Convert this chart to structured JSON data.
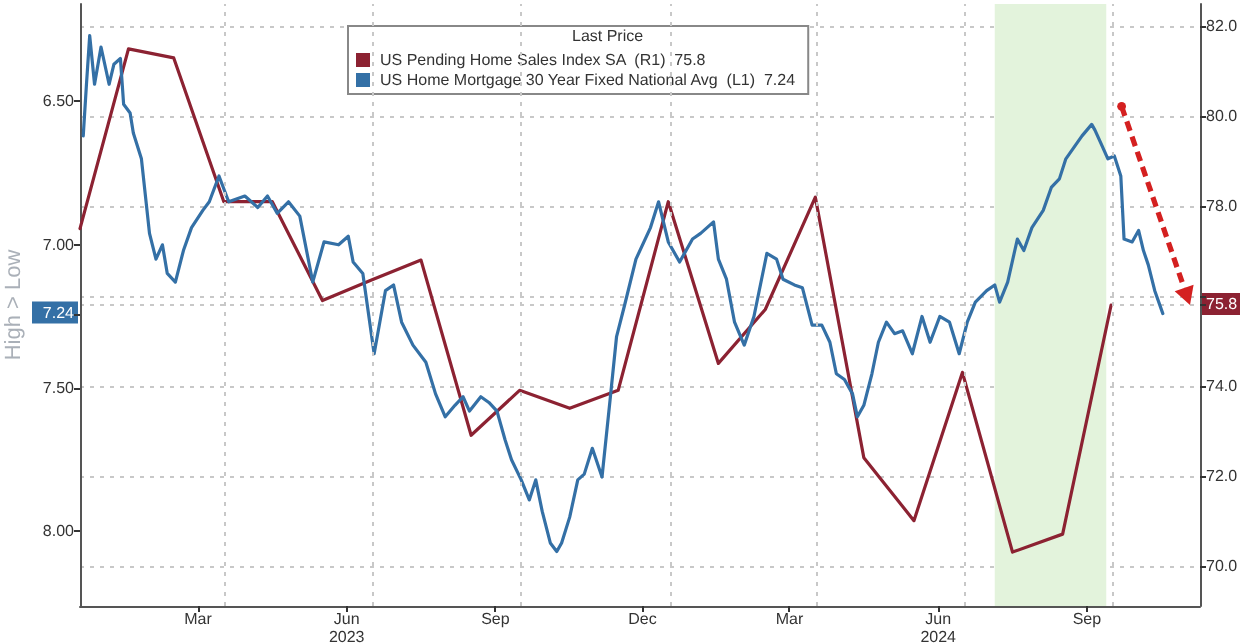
{
  "chart_data": {
    "type": "line",
    "legend_title": "Last Price",
    "ylabel": "High > Low",
    "xlim": [
      "2023-01-01",
      "2024-11-24"
    ],
    "xticks": [
      {
        "value": "2023-03-15",
        "label": "Mar"
      },
      {
        "value": "2023-04-01",
        "label": null
      },
      {
        "value": "2023-06-15",
        "label": "Jun\n2023"
      },
      {
        "value": "2023-07-01",
        "label": null
      },
      {
        "value": "2023-09-15",
        "label": "Sep"
      },
      {
        "value": "2023-10-01",
        "label": null
      },
      {
        "value": "2023-12-15",
        "label": "Dec"
      },
      {
        "value": "2024-01-01",
        "label": null
      },
      {
        "value": "2024-03-15",
        "label": "Mar"
      },
      {
        "value": "2024-04-01",
        "label": null
      },
      {
        "value": "2024-06-15",
        "label": "Jun\n2024"
      },
      {
        "value": "2024-07-01",
        "label": null
      },
      {
        "value": "2024-09-15",
        "label": "Sep"
      },
      {
        "value": "2024-10-01",
        "label": null
      }
    ],
    "ylim": [
      8.26,
      6.16
    ],
    "yticks": [
      {
        "value": 6.5,
        "label": "6.50"
      },
      {
        "value": 7,
        "label": "7.00"
      },
      {
        "value": 7.24,
        "label": "7.24"
      },
      {
        "value": 7.5,
        "label": "7.50"
      },
      {
        "value": 8,
        "label": "8.00"
      }
    ],
    "y2lim": [
      69.1,
      82.5
    ],
    "y2ticks": [
      {
        "value": 70,
        "label": "70.0"
      },
      {
        "value": 72,
        "label": "72.0"
      },
      {
        "value": 74,
        "label": "74.0"
      },
      {
        "value": 75.8,
        "label": "75.8"
      },
      {
        "value": 76,
        "label": null
      },
      {
        "value": 78,
        "label": "78.0"
      },
      {
        "value": 80,
        "label": "80.0"
      },
      {
        "value": 82,
        "label": "82.0"
      }
    ],
    "grid": true,
    "legend": "top",
    "marker": "none",
    "line_style": "solid",
    "bands": [
      {
        "axis": "x",
        "from": "2024-07-20",
        "to": "2024-09-27",
        "color": "#e3f3dc"
      }
    ],
    "series": [
      {
        "name": "US Pending Home Sales Index SA  (R1)  75.8",
        "color": "#8c2232",
        "axis": "y2",
        "x": [
          "2023-01-01",
          "2023-01-31",
          "2023-02-28",
          "2023-03-31",
          "2023-04-30",
          "2023-05-31",
          "2023-06-30",
          "2023-07-31",
          "2023-08-31",
          "2023-09-30",
          "2023-10-31",
          "2023-11-30",
          "2023-12-31",
          "2024-01-31",
          "2024-02-29",
          "2024-03-31",
          "2024-04-30",
          "2024-05-31",
          "2024-06-30",
          "2024-07-31",
          "2024-08-31",
          "2024-09-30"
        ],
        "values": [
          77.5,
          81.5,
          81.3,
          78.1,
          78.1,
          75.9,
          76.35,
          76.8,
          72.9,
          73.9,
          73.5,
          73.9,
          78.1,
          74.5,
          75.7,
          78.2,
          72.4,
          71.0,
          74.3,
          70.3,
          70.7,
          75.8
        ]
      },
      {
        "name": "US Home Mortgage 30 Year Fixed National Avg  (L1)  7.24",
        "color": "#3470a6",
        "axis": "y",
        "x": [
          "2023-01-03",
          "2023-01-05",
          "2023-01-07",
          "2023-01-10",
          "2023-01-14",
          "2023-01-19",
          "2023-01-22",
          "2023-01-26",
          "2023-01-28",
          "2023-02-01",
          "2023-02-03",
          "2023-02-08",
          "2023-02-13",
          "2023-02-17",
          "2023-02-21",
          "2023-02-24",
          "2023-03-01",
          "2023-03-06",
          "2023-03-11",
          "2023-03-18",
          "2023-03-22",
          "2023-03-28",
          "2023-04-03",
          "2023-04-13",
          "2023-04-21",
          "2023-04-27",
          "2023-05-03",
          "2023-05-10",
          "2023-05-17",
          "2023-05-25",
          "2023-06-01",
          "2023-06-10",
          "2023-06-16",
          "2023-06-19",
          "2023-06-25",
          "2023-07-02",
          "2023-07-09",
          "2023-07-14",
          "2023-07-19",
          "2023-07-26",
          "2023-08-03",
          "2023-08-09",
          "2023-08-15",
          "2023-08-21",
          "2023-08-26",
          "2023-08-30",
          "2023-09-06",
          "2023-09-11",
          "2023-09-16",
          "2023-09-21",
          "2023-09-25",
          "2023-10-01",
          "2023-10-06",
          "2023-10-10",
          "2023-10-14",
          "2023-10-19",
          "2023-10-23",
          "2023-10-26",
          "2023-10-31",
          "2023-11-05",
          "2023-11-09",
          "2023-11-14",
          "2023-11-20",
          "2023-11-25",
          "2023-11-29",
          "2023-12-04",
          "2023-12-11",
          "2023-12-20",
          "2023-12-25",
          "2023-12-31",
          "2024-01-07",
          "2024-01-15",
          "2024-01-20",
          "2024-01-28",
          "2024-01-31",
          "2024-02-05",
          "2024-02-10",
          "2024-02-16",
          "2024-02-22",
          "2024-03-01",
          "2024-03-07",
          "2024-03-11",
          "2024-03-18",
          "2024-03-23",
          "2024-03-29",
          "2024-04-04",
          "2024-04-09",
          "2024-04-13",
          "2024-04-18",
          "2024-04-23",
          "2024-04-26",
          "2024-04-30",
          "2024-05-05",
          "2024-05-09",
          "2024-05-14",
          "2024-05-19",
          "2024-05-24",
          "2024-05-30",
          "2024-06-05",
          "2024-06-10",
          "2024-06-16",
          "2024-06-22",
          "2024-06-28",
          "2024-07-03",
          "2024-07-08",
          "2024-07-15",
          "2024-07-20",
          "2024-07-23",
          "2024-07-28",
          "2024-08-03",
          "2024-08-07",
          "2024-08-12",
          "2024-08-19",
          "2024-08-24",
          "2024-08-29",
          "2024-09-02",
          "2024-09-07",
          "2024-09-12",
          "2024-09-18",
          "2024-09-20",
          "2024-09-24",
          "2024-09-28",
          "2024-10-02",
          "2024-10-06",
          "2024-10-08",
          "2024-10-13",
          "2024-10-17",
          "2024-10-20",
          "2024-10-23",
          "2024-10-27",
          "2024-11-01"
        ],
        "values": [
          6.62,
          6.44,
          6.27,
          6.44,
          6.31,
          6.44,
          6.37,
          6.35,
          6.51,
          6.54,
          6.61,
          6.7,
          6.96,
          7.05,
          7.0,
          7.1,
          7.13,
          7.02,
          6.94,
          6.88,
          6.85,
          6.76,
          6.85,
          6.83,
          6.87,
          6.83,
          6.89,
          6.85,
          6.9,
          7.13,
          6.99,
          7.0,
          6.97,
          7.06,
          7.1,
          7.38,
          7.16,
          7.14,
          7.27,
          7.35,
          7.41,
          7.52,
          7.6,
          7.56,
          7.53,
          7.58,
          7.53,
          7.55,
          7.58,
          7.68,
          7.75,
          7.82,
          7.89,
          7.82,
          7.93,
          8.04,
          8.07,
          8.04,
          7.95,
          7.82,
          7.8,
          7.71,
          7.81,
          7.54,
          7.32,
          7.21,
          7.05,
          6.94,
          6.85,
          6.99,
          7.06,
          6.98,
          6.96,
          6.92,
          7.05,
          7.12,
          7.27,
          7.35,
          7.25,
          7.03,
          7.05,
          7.12,
          7.14,
          7.15,
          7.28,
          7.28,
          7.34,
          7.45,
          7.47,
          7.52,
          7.6,
          7.56,
          7.45,
          7.34,
          7.27,
          7.31,
          7.3,
          7.38,
          7.25,
          7.34,
          7.25,
          7.27,
          7.38,
          7.27,
          7.2,
          7.16,
          7.14,
          7.2,
          7.13,
          6.98,
          7.02,
          6.94,
          6.88,
          6.8,
          6.77,
          6.7,
          6.66,
          6.62,
          6.58,
          6.6,
          6.65,
          6.7,
          6.69,
          6.76,
          6.98,
          6.99,
          6.95,
          7.02,
          7.07,
          7.16,
          7.24
        ]
      }
    ]
  }
}
